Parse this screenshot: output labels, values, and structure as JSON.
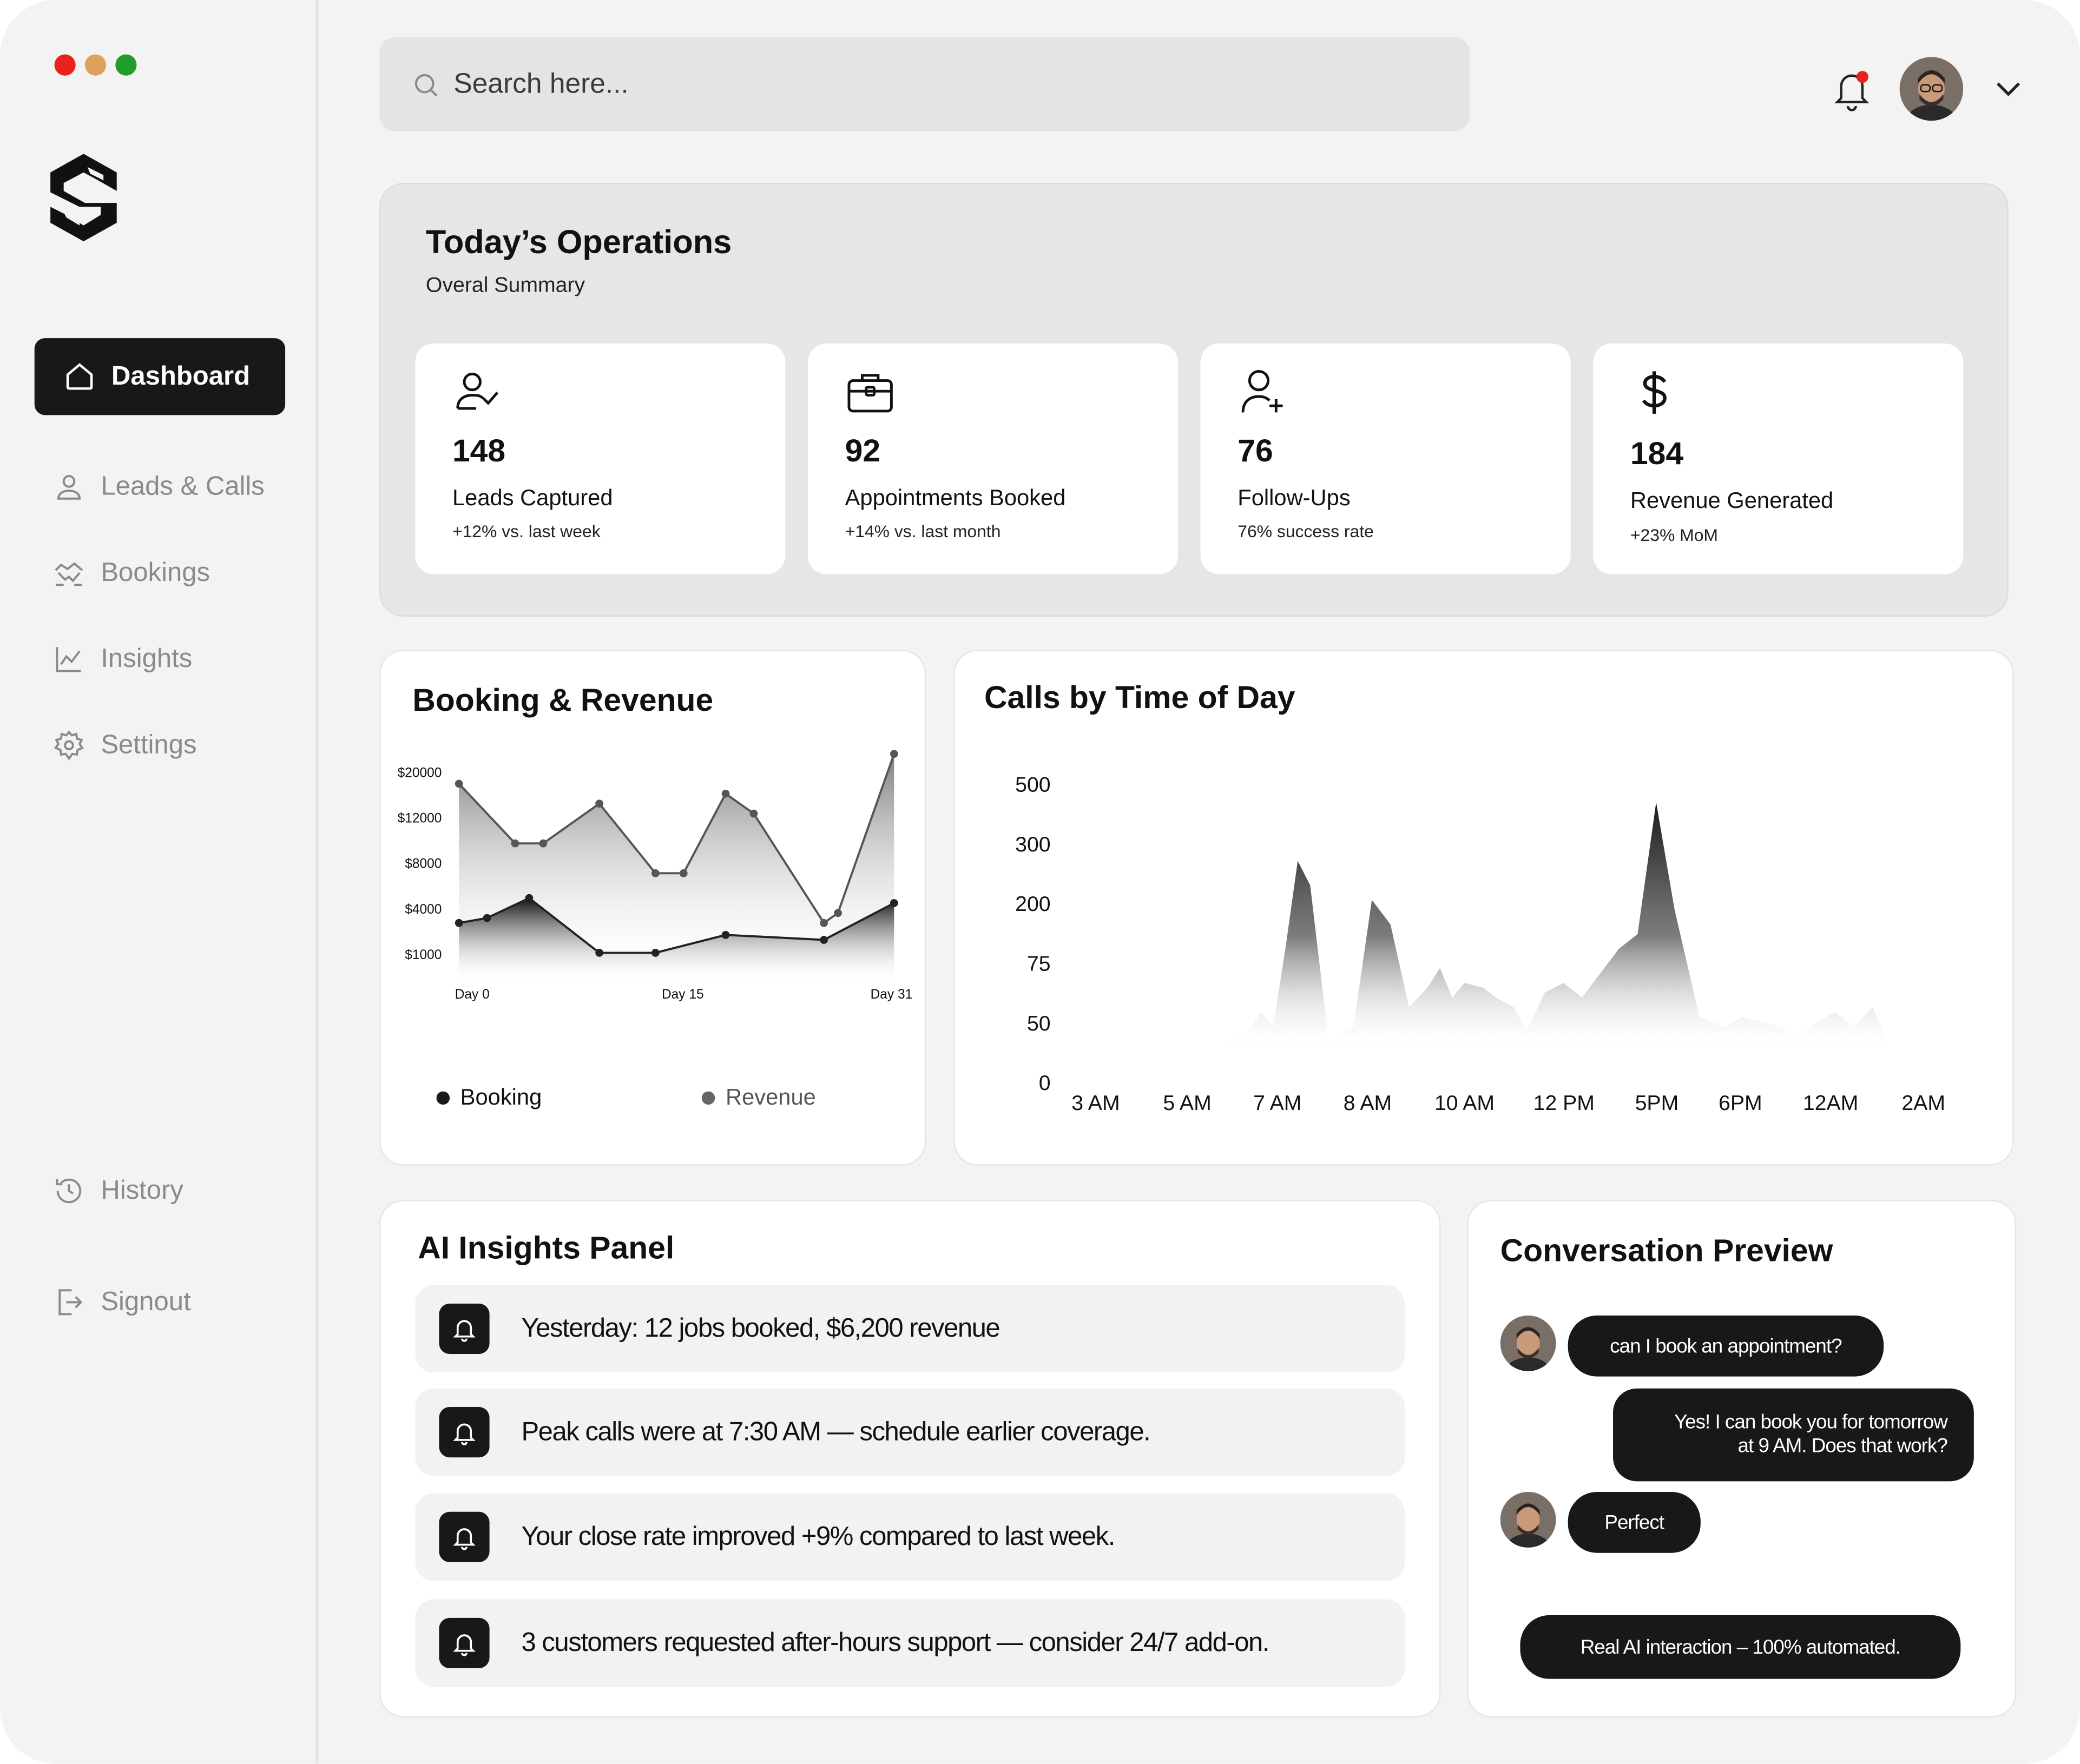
{
  "window": {
    "dots": [
      "#e8231c",
      "#e0a059",
      "#1f9e2a"
    ]
  },
  "sidebar": {
    "items": [
      {
        "label": "Dashboard",
        "icon": "home-icon",
        "active": true
      },
      {
        "label": "Leads & Calls",
        "icon": "user-icon"
      },
      {
        "label": "Bookings",
        "icon": "handshake-icon"
      },
      {
        "label": "Insights",
        "icon": "line-chart-icon"
      },
      {
        "label": "Settings",
        "icon": "gear-icon"
      }
    ],
    "bottom_items": [
      {
        "label": "History",
        "icon": "history-icon"
      },
      {
        "label": "Signout",
        "icon": "signout-icon"
      }
    ]
  },
  "search": {
    "placeholder": "Search here..."
  },
  "operations": {
    "title": "Today’s Operations",
    "subtitle": "Overal Summary",
    "stats": [
      {
        "value": "148",
        "label": "Leads Captured",
        "change": "+12% vs. last week",
        "icon": "user-check-icon"
      },
      {
        "value": "92",
        "label": "Appointments Booked",
        "change": "+14% vs. last month",
        "icon": "briefcase-icon"
      },
      {
        "value": "76",
        "label": "Follow-Ups",
        "change": "76% success rate",
        "icon": "user-plus-icon"
      },
      {
        "value": "184",
        "label": "Revenue Generated",
        "change": "+23% MoM",
        "icon": "dollar-icon"
      }
    ]
  },
  "booking_revenue": {
    "title": "Booking & Revenue",
    "legend": [
      "Booking",
      "Revenue"
    ]
  },
  "calls_by_time": {
    "title": "Calls by Time of Day"
  },
  "chart_data": [
    {
      "type": "area",
      "title": "Booking & Revenue",
      "y_tick_labels": [
        "$20000",
        "$12000",
        "$8000",
        "$4000",
        "$1000"
      ],
      "x_tick_labels": [
        "Day 0",
        "Day 15",
        "Day 31"
      ],
      "series": [
        {
          "name": "Revenue",
          "x": [
            0,
            4,
            6,
            10,
            14,
            16,
            19,
            21,
            26,
            27,
            31
          ],
          "values": [
            20000,
            14000,
            14000,
            18000,
            11000,
            11000,
            19000,
            17000,
            6000,
            7000,
            23000
          ]
        },
        {
          "name": "Booking",
          "x": [
            0,
            2,
            5,
            10,
            14,
            19,
            26,
            31
          ],
          "values": [
            6000,
            6500,
            8500,
            3000,
            3000,
            4800,
            4300,
            8000
          ]
        }
      ]
    },
    {
      "type": "area",
      "title": "Calls by Time of Day",
      "y_tick_labels": [
        "500",
        "300",
        "200",
        "75",
        "50",
        "0"
      ],
      "x_tick_labels": [
        "3 AM",
        "5 AM",
        "7 AM",
        "8 AM",
        "10 AM",
        "12 PM",
        "5PM",
        "6PM",
        "12AM",
        "2AM"
      ],
      "series": [
        {
          "name": "Calls",
          "x": [
            3.0,
            3.4,
            3.8,
            4.2,
            4.6,
            4.9,
            5.1,
            5.4,
            5.6,
            5.8,
            6.0,
            6.2,
            6.4,
            6.6,
            6.9,
            7.3,
            7.6,
            7.9,
            8.2,
            8.5,
            8.7,
            8.9,
            9.1,
            9.4,
            9.6,
            9.9,
            10.1,
            10.4,
            10.7,
            11.0,
            11.3,
            11.6,
            11.9,
            12.2,
            12.5,
            12.9,
            13.3,
            13.6,
            13.9,
            14.2,
            14.5,
            14.8,
            15.1,
            15.4,
            15.7,
            16.0,
            16.3,
            16.6,
            17.0
          ],
          "values": [
            0,
            0,
            0,
            0,
            0,
            0,
            5,
            15,
            30,
            70,
            40,
            200,
            380,
            330,
            10,
            40,
            300,
            250,
            80,
            120,
            160,
            100,
            130,
            120,
            100,
            80,
            30,
            110,
            130,
            100,
            150,
            200,
            230,
            500,
            280,
            60,
            40,
            60,
            50,
            40,
            20,
            50,
            70,
            40,
            80,
            0,
            0,
            0,
            0
          ]
        }
      ]
    }
  ],
  "insights": {
    "title": "AI Insights Panel",
    "items": [
      "Yesterday: 12 jobs booked, $6,200 revenue",
      "Peak calls were at 7:30 AM — schedule earlier coverage.",
      "Your close rate improved +9% compared to last week.",
      "3 customers requested after-hours support — consider 24/7 add-on."
    ]
  },
  "conversation": {
    "title": "Conversation Preview",
    "messages": [
      {
        "from": "user",
        "text": "can I book an appointment?"
      },
      {
        "from": "ai",
        "line1": "Yes! I can book you for tomorrow",
        "line2": "at 9 AM. Does that work?"
      },
      {
        "from": "user",
        "text": "Perfect"
      }
    ],
    "footer": "Real AI interaction – 100% automated."
  }
}
